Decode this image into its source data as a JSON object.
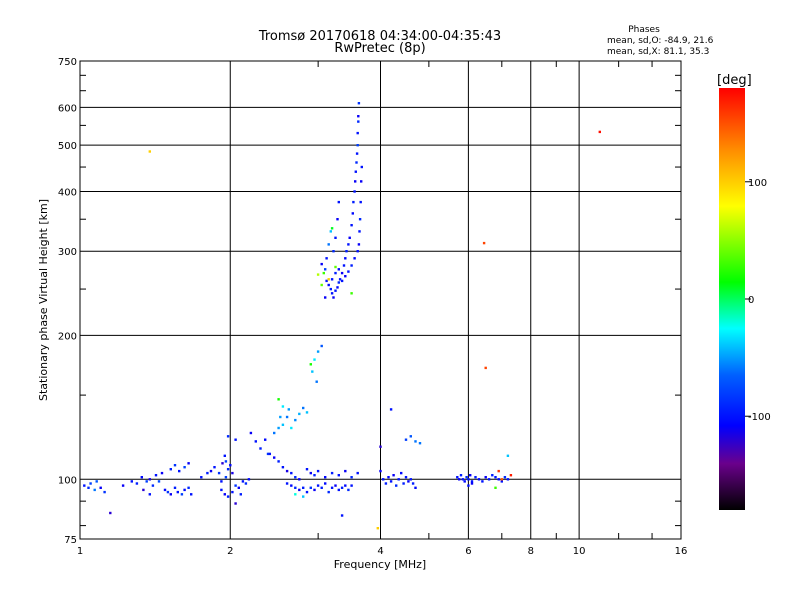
{
  "chart_data": {
    "type": "scatter",
    "title": "Tromsø 20170618 04:34:00-04:35:43",
    "subtitle": "RwPretec (8p)",
    "xlabel": "Frequency [MHz]",
    "ylabel": "Stationary phase Virtual Height [km]",
    "x_scale": "log",
    "y_scale": "log",
    "xlim": [
      1,
      16
    ],
    "ylim": [
      75,
      750
    ],
    "xticks": [
      1,
      2,
      4,
      6,
      8,
      10,
      16
    ],
    "yticks": [
      75,
      100,
      200,
      300,
      400,
      500,
      600,
      750
    ],
    "grid": true,
    "info": {
      "heading": "Phases",
      "line1": "mean, sd,O: -84.9, 21.6",
      "line2": "mean, sd,X: 81.1, 35.3"
    },
    "colorbar": {
      "label": "[deg]",
      "ticks": [
        100,
        0,
        -100
      ],
      "range": [
        -180,
        180
      ]
    },
    "points": [
      [
        1.02,
        97,
        -100
      ],
      [
        1.04,
        96,
        -90
      ],
      [
        1.05,
        98,
        -80
      ],
      [
        1.07,
        95,
        -60
      ],
      [
        1.1,
        96,
        -110
      ],
      [
        1.12,
        94,
        -85
      ],
      [
        1.15,
        85,
        -120
      ],
      [
        1.08,
        99,
        -70
      ],
      [
        1.22,
        97,
        -110
      ],
      [
        1.27,
        99,
        -100
      ],
      [
        1.3,
        98,
        -95
      ],
      [
        1.33,
        101,
        -105
      ],
      [
        1.36,
        99,
        -80
      ],
      [
        1.38,
        100,
        -115
      ],
      [
        1.4,
        97,
        -90
      ],
      [
        1.42,
        102,
        -100
      ],
      [
        1.44,
        99,
        -75
      ],
      [
        1.46,
        103,
        -110
      ],
      [
        1.34,
        95,
        -120
      ],
      [
        1.38,
        93,
        -100
      ],
      [
        1.48,
        95,
        -105
      ],
      [
        1.5,
        94,
        -85
      ],
      [
        1.52,
        93,
        -110
      ],
      [
        1.55,
        96,
        -95
      ],
      [
        1.57,
        94,
        -100
      ],
      [
        1.6,
        93,
        -80
      ],
      [
        1.62,
        95,
        -105
      ],
      [
        1.65,
        96,
        -90
      ],
      [
        1.67,
        93,
        -100
      ],
      [
        1.52,
        105,
        -95
      ],
      [
        1.55,
        107,
        -85
      ],
      [
        1.58,
        104,
        -100
      ],
      [
        1.62,
        106,
        -80
      ],
      [
        1.65,
        108,
        -110
      ],
      [
        1.38,
        485,
        100
      ],
      [
        1.75,
        101,
        -100
      ],
      [
        1.8,
        103,
        -95
      ],
      [
        1.83,
        104,
        -110
      ],
      [
        1.86,
        106,
        -100
      ],
      [
        1.9,
        103,
        -85
      ],
      [
        1.93,
        108,
        -120
      ],
      [
        1.95,
        112,
        -100
      ],
      [
        1.98,
        105,
        -90
      ],
      [
        2.0,
        107,
        -105
      ],
      [
        1.92,
        99,
        -100
      ],
      [
        1.96,
        101,
        -80
      ],
      [
        1.92,
        95,
        -100
      ],
      [
        1.95,
        93,
        -110
      ],
      [
        1.98,
        92,
        -95
      ],
      [
        2.02,
        94,
        -100
      ],
      [
        2.05,
        97,
        -85
      ],
      [
        2.08,
        96,
        -110
      ],
      [
        2.12,
        99,
        -100
      ],
      [
        2.15,
        98,
        -90
      ],
      [
        2.18,
        100,
        -105
      ],
      [
        2.05,
        89,
        -120
      ],
      [
        2.1,
        93,
        -95
      ],
      [
        1.98,
        123,
        -90
      ],
      [
        2.05,
        121,
        -100
      ],
      [
        1.96,
        109,
        -80
      ],
      [
        2.02,
        103,
        -115
      ],
      [
        2.2,
        125,
        -110
      ],
      [
        2.25,
        120,
        -100
      ],
      [
        2.3,
        116,
        -95
      ],
      [
        2.35,
        121,
        -105
      ],
      [
        2.38,
        113,
        -85
      ],
      [
        2.45,
        125,
        -60
      ],
      [
        2.5,
        128,
        -50
      ],
      [
        2.55,
        130,
        -40
      ],
      [
        2.6,
        135,
        -60
      ],
      [
        2.62,
        140,
        -50
      ],
      [
        2.65,
        128,
        -30
      ],
      [
        2.7,
        133,
        -55
      ],
      [
        2.75,
        137,
        -45
      ],
      [
        2.8,
        141,
        -60
      ],
      [
        2.85,
        138,
        -40
      ],
      [
        2.55,
        142,
        -30
      ],
      [
        2.5,
        147,
        20
      ],
      [
        2.52,
        135,
        -50
      ],
      [
        2.4,
        113,
        -100
      ],
      [
        2.45,
        111,
        -110
      ],
      [
        2.5,
        109,
        -95
      ],
      [
        2.55,
        106,
        -100
      ],
      [
        2.6,
        104,
        -115
      ],
      [
        2.65,
        103,
        -100
      ],
      [
        2.7,
        101,
        -90
      ],
      [
        2.75,
        100,
        -110
      ],
      [
        2.6,
        98,
        -100
      ],
      [
        2.65,
        97,
        -105
      ],
      [
        2.7,
        96,
        -90
      ],
      [
        2.75,
        95,
        -110
      ],
      [
        2.8,
        96,
        -95
      ],
      [
        2.85,
        94,
        -100
      ],
      [
        2.9,
        96,
        -85
      ],
      [
        2.95,
        95,
        -110
      ],
      [
        3.0,
        97,
        -100
      ],
      [
        3.05,
        96,
        -95
      ],
      [
        3.1,
        98,
        -105
      ],
      [
        3.15,
        94,
        -90
      ],
      [
        3.2,
        96,
        -100
      ],
      [
        3.25,
        97,
        -110
      ],
      [
        3.3,
        95,
        -100
      ],
      [
        3.35,
        96,
        -95
      ],
      [
        3.4,
        97,
        -105
      ],
      [
        3.45,
        95,
        -90
      ],
      [
        3.5,
        97,
        -100
      ],
      [
        2.7,
        93,
        -20
      ],
      [
        2.8,
        92,
        -40
      ],
      [
        2.85,
        105,
        -100
      ],
      [
        2.9,
        103,
        -110
      ],
      [
        2.95,
        102,
        -95
      ],
      [
        3.0,
        104,
        -100
      ],
      [
        3.1,
        101,
        -105
      ],
      [
        3.2,
        103,
        -95
      ],
      [
        3.3,
        102,
        -100
      ],
      [
        3.4,
        104,
        -110
      ],
      [
        3.5,
        101,
        -90
      ],
      [
        3.6,
        103,
        -100
      ],
      [
        2.95,
        178,
        -30
      ],
      [
        3.0,
        185,
        -50
      ],
      [
        2.98,
        160,
        -60
      ],
      [
        3.05,
        190,
        -70
      ],
      [
        2.9,
        174,
        20
      ],
      [
        2.92,
        168,
        -40
      ],
      [
        3.05,
        282,
        -110
      ],
      [
        3.08,
        270,
        30
      ],
      [
        3.1,
        275,
        -80
      ],
      [
        3.12,
        290,
        -100
      ],
      [
        3.15,
        310,
        -60
      ],
      [
        3.18,
        330,
        -40
      ],
      [
        3.2,
        335,
        10
      ],
      [
        3.22,
        300,
        -90
      ],
      [
        3.25,
        320,
        -100
      ],
      [
        3.28,
        350,
        -110
      ],
      [
        3.3,
        380,
        -100
      ],
      [
        3.1,
        240,
        -110
      ],
      [
        3.12,
        260,
        -100
      ],
      [
        3.15,
        255,
        -105
      ],
      [
        3.18,
        250,
        -95
      ],
      [
        3.2,
        245,
        -100
      ],
      [
        3.22,
        240,
        -110
      ],
      [
        3.25,
        248,
        -100
      ],
      [
        3.28,
        252,
        -105
      ],
      [
        3.3,
        258,
        -90
      ],
      [
        3.32,
        262,
        -100
      ],
      [
        3.35,
        270,
        -110
      ],
      [
        3.38,
        280,
        -100
      ],
      [
        3.4,
        290,
        -105
      ],
      [
        3.42,
        300,
        -95
      ],
      [
        3.45,
        310,
        -100
      ],
      [
        3.47,
        320,
        -110
      ],
      [
        3.5,
        340,
        -100
      ],
      [
        3.52,
        360,
        -105
      ],
      [
        3.53,
        380,
        -95
      ],
      [
        3.55,
        400,
        -100
      ],
      [
        3.56,
        420,
        -110
      ],
      [
        3.57,
        440,
        -100
      ],
      [
        3.58,
        460,
        -90
      ],
      [
        3.59,
        480,
        -100
      ],
      [
        3.6,
        500,
        -80
      ],
      [
        3.6,
        530,
        -100
      ],
      [
        3.61,
        560,
        -90
      ],
      [
        3.61,
        575,
        -110
      ],
      [
        3.62,
        612,
        -85
      ],
      [
        3.2,
        262,
        -100
      ],
      [
        3.25,
        270,
        -95
      ],
      [
        3.3,
        275,
        -105
      ],
      [
        3.35,
        260,
        -100
      ],
      [
        3.4,
        266,
        -110
      ],
      [
        3.45,
        272,
        -100
      ],
      [
        3.5,
        280,
        -95
      ],
      [
        3.55,
        290,
        -105
      ],
      [
        3.6,
        300,
        -100
      ],
      [
        3.62,
        310,
        -110
      ],
      [
        3.63,
        330,
        -100
      ],
      [
        3.64,
        350,
        -90
      ],
      [
        3.65,
        380,
        -100
      ],
      [
        3.66,
        420,
        -110
      ],
      [
        3.67,
        450,
        -100
      ],
      [
        3.0,
        268,
        60
      ],
      [
        3.05,
        255,
        40
      ],
      [
        3.15,
        262,
        100
      ],
      [
        3.25,
        278,
        40
      ],
      [
        3.5,
        245,
        30
      ],
      [
        3.35,
        84,
        -100
      ],
      [
        3.95,
        79,
        100
      ],
      [
        4.0,
        104,
        -110
      ],
      [
        4.05,
        100,
        -100
      ],
      [
        4.1,
        98,
        -95
      ],
      [
        4.15,
        101,
        -105
      ],
      [
        4.2,
        99,
        -100
      ],
      [
        4.25,
        102,
        -110
      ],
      [
        4.3,
        97,
        -90
      ],
      [
        4.35,
        100,
        -100
      ],
      [
        4.4,
        103,
        -105
      ],
      [
        4.45,
        98,
        -95
      ],
      [
        4.5,
        101,
        -100
      ],
      [
        4.55,
        99,
        -110
      ],
      [
        4.6,
        100,
        -100
      ],
      [
        4.65,
        98,
        -95
      ],
      [
        4.7,
        96,
        -105
      ],
      [
        4.2,
        140,
        -100
      ],
      [
        4.0,
        117,
        -120
      ],
      [
        4.5,
        121,
        -80
      ],
      [
        4.6,
        123,
        -70
      ],
      [
        4.7,
        120,
        -60
      ],
      [
        4.8,
        119,
        -60
      ],
      [
        5.7,
        101,
        -100
      ],
      [
        5.75,
        100,
        -110
      ],
      [
        5.8,
        102,
        -95
      ],
      [
        5.85,
        100,
        -100
      ],
      [
        5.9,
        99,
        -105
      ],
      [
        5.95,
        101,
        -90
      ],
      [
        6.0,
        100,
        -100
      ],
      [
        6.05,
        102,
        -110
      ],
      [
        6.1,
        99,
        -100
      ],
      [
        6.2,
        101,
        -95
      ],
      [
        6.3,
        100,
        -105
      ],
      [
        6.4,
        99,
        -100
      ],
      [
        6.5,
        101,
        -110
      ],
      [
        6.6,
        100,
        -100
      ],
      [
        6.7,
        102,
        -95
      ],
      [
        6.8,
        101,
        -100
      ],
      [
        6.9,
        100,
        -105
      ],
      [
        7.0,
        99,
        -100
      ],
      [
        7.1,
        101,
        -90
      ],
      [
        7.2,
        100,
        -100
      ],
      [
        6.0,
        97,
        -100
      ],
      [
        6.1,
        98,
        -110
      ],
      [
        6.45,
        312,
        155
      ],
      [
        6.5,
        171,
        155
      ],
      [
        6.9,
        104,
        160
      ],
      [
        7.2,
        112,
        -40
      ],
      [
        7.0,
        100,
        150
      ],
      [
        7.3,
        102,
        170
      ],
      [
        6.8,
        96,
        30
      ],
      [
        11.0,
        533,
        175
      ]
    ]
  }
}
